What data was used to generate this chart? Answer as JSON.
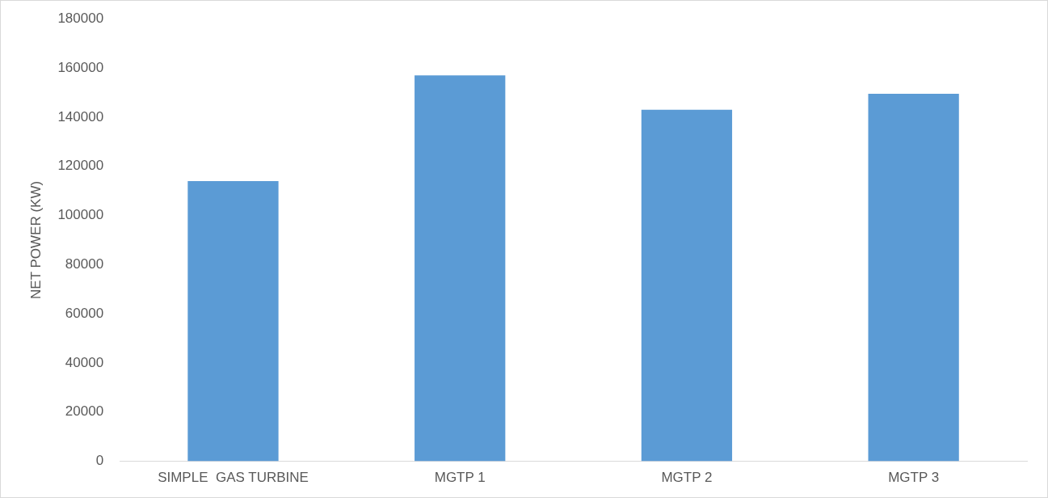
{
  "chart_data": {
    "type": "bar",
    "ylabel": "NET POWER (KW)",
    "categories": [
      "SIMPLE  GAS TURBINE",
      "MGTP 1",
      "MGTP 2",
      "MGTP 3"
    ],
    "values": [
      114000,
      157000,
      143000,
      149500
    ],
    "color": "#5b9bd5",
    "ylim": [
      0,
      180000
    ],
    "yticks": [
      0,
      20000,
      40000,
      60000,
      80000,
      100000,
      120000,
      140000,
      160000,
      180000
    ],
    "grid": false,
    "legend": false
  }
}
